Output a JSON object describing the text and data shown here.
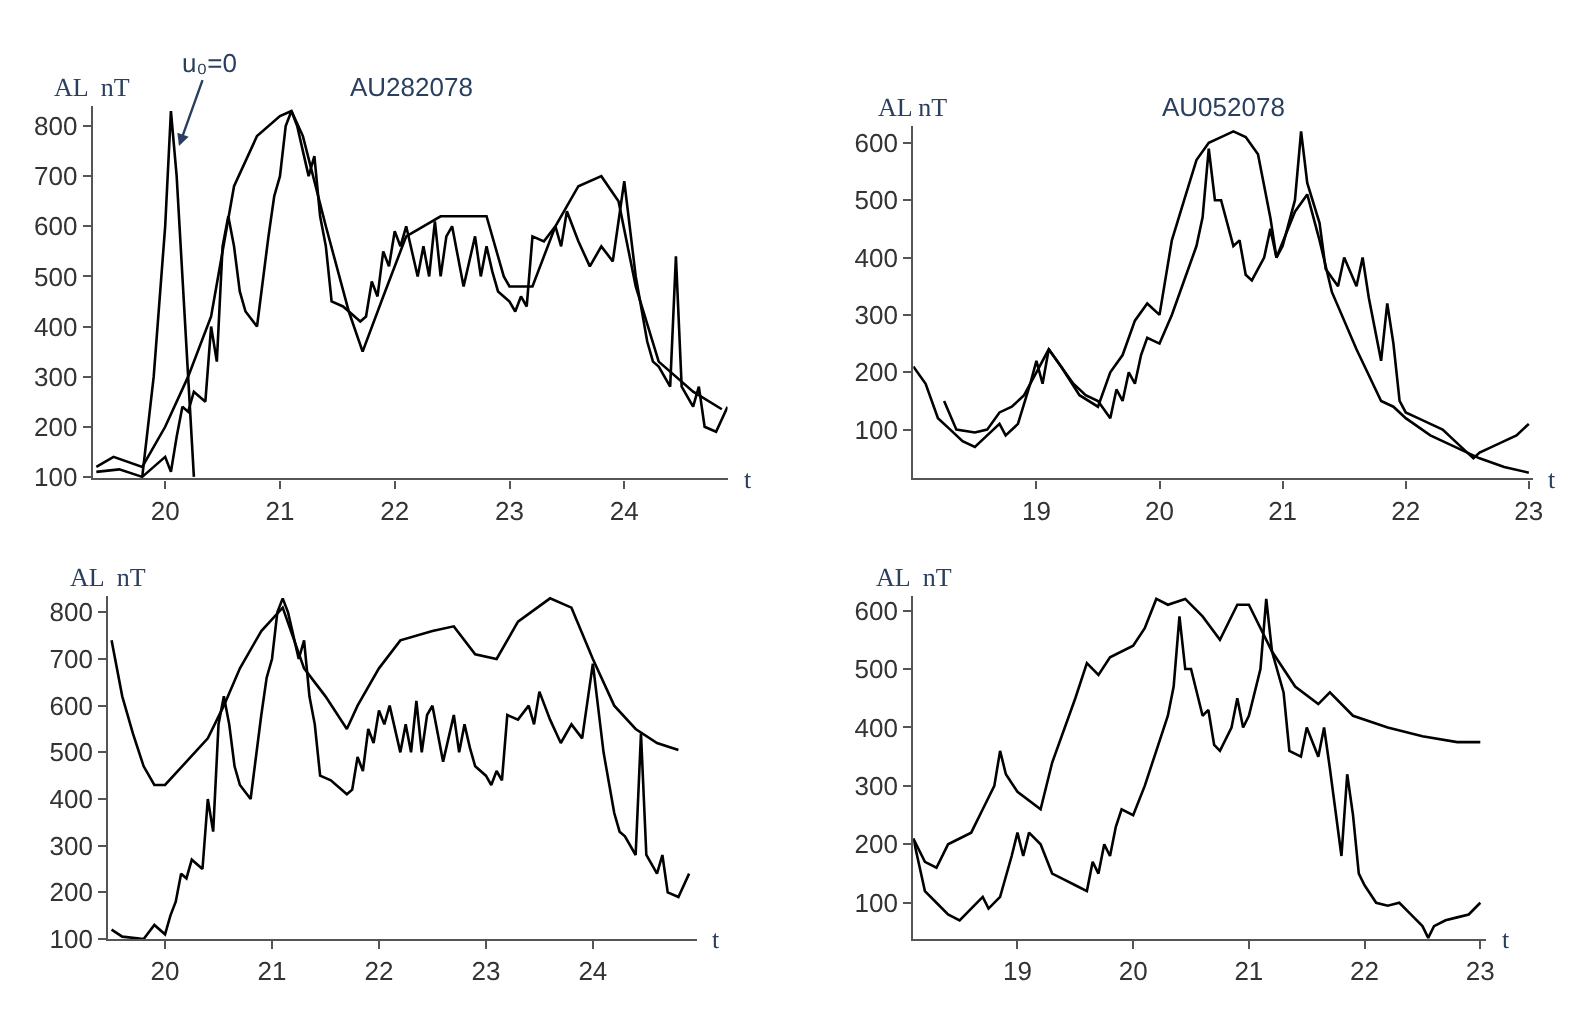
{
  "chart_data": [
    {
      "type": "line",
      "title": "AU282078",
      "xlabel": "t",
      "ylabel": "AL  nT",
      "xlim": [
        19.37,
        24.9
      ],
      "xticks": [
        20,
        21,
        22,
        23,
        24
      ],
      "ylim": [
        97,
        840
      ],
      "yticks": [
        100,
        200,
        300,
        400,
        500,
        600,
        700,
        800
      ],
      "marker": "none",
      "line_style": "solid",
      "annotations": [
        {
          "text": "u₀=0",
          "x": 20.12,
          "y": 760
        }
      ],
      "series": [
        {
          "color": "#000000",
          "x": [
            19.4,
            19.6,
            19.8,
            19.9,
            20.0,
            20.05,
            20.1,
            20.15,
            20.2,
            20.25,
            20.35,
            20.4,
            20.45,
            20.5,
            20.55,
            20.6,
            20.65,
            20.7,
            20.8,
            20.9,
            20.95,
            21.0,
            21.05,
            21.1,
            21.15,
            21.2,
            21.25,
            21.3,
            21.35,
            21.4,
            21.45,
            21.55,
            21.7,
            21.75,
            21.8,
            21.85,
            21.9,
            21.95,
            22.0,
            22.05,
            22.1,
            22.2,
            22.25,
            22.3,
            22.35,
            22.4,
            22.45,
            22.5,
            22.55,
            22.6,
            22.7,
            22.75,
            22.8,
            22.85,
            22.9,
            23.0,
            23.05,
            23.1,
            23.15,
            23.2,
            23.3,
            23.4,
            23.45,
            23.5,
            23.6,
            23.7,
            23.8,
            23.9,
            24.0,
            24.1,
            24.2,
            24.25,
            24.3,
            24.4,
            24.45,
            24.5,
            24.6,
            24.65,
            24.7,
            24.8,
            24.9
          ],
          "values": [
            110,
            115,
            100,
            120,
            140,
            110,
            180,
            240,
            230,
            270,
            250,
            400,
            330,
            560,
            620,
            560,
            470,
            430,
            400,
            580,
            660,
            700,
            800,
            830,
            800,
            750,
            700,
            740,
            620,
            560,
            450,
            440,
            410,
            420,
            490,
            460,
            550,
            520,
            590,
            560,
            600,
            500,
            560,
            500,
            610,
            500,
            580,
            600,
            540,
            480,
            580,
            500,
            560,
            510,
            470,
            450,
            430,
            460,
            440,
            580,
            570,
            600,
            560,
            630,
            570,
            520,
            560,
            530,
            690,
            500,
            370,
            330,
            320,
            280,
            540,
            280,
            240,
            280,
            200,
            190,
            240
          ]
        },
        {
          "color": "#000000",
          "x": [
            19.4,
            19.55,
            19.8,
            20.0,
            20.2,
            20.4,
            20.6,
            20.8,
            21.0,
            21.1,
            21.2,
            21.4,
            21.6,
            21.72,
            21.9,
            22.1,
            22.4,
            22.8,
            22.95,
            23.0,
            23.2,
            23.4,
            23.6,
            23.8,
            23.95,
            24.1,
            24.3,
            24.6,
            24.85
          ],
          "values": [
            120,
            140,
            120,
            200,
            300,
            420,
            680,
            780,
            820,
            830,
            780,
            600,
            430,
            350,
            460,
            580,
            620,
            620,
            500,
            480,
            480,
            600,
            680,
            700,
            650,
            480,
            330,
            270,
            235
          ]
        },
        {
          "color": "#000000",
          "x": [
            19.8,
            19.9,
            20.0,
            20.05,
            20.1,
            20.2,
            20.25
          ],
          "values": [
            100,
            300,
            600,
            830,
            700,
            300,
            100
          ]
        }
      ]
    },
    {
      "type": "line",
      "title": "AU052078",
      "xlabel": "t",
      "ylabel": "AL nT",
      "xlim": [
        18.0,
        23.03
      ],
      "xticks": [
        19,
        20,
        21,
        22,
        23
      ],
      "ylim": [
        15,
        630
      ],
      "yticks": [
        100,
        200,
        300,
        400,
        500,
        600
      ],
      "marker": "none",
      "line_style": "solid",
      "series": [
        {
          "color": "#000000",
          "x": [
            18.0,
            18.1,
            18.2,
            18.3,
            18.4,
            18.5,
            18.6,
            18.7,
            18.75,
            18.85,
            18.95,
            19.0,
            19.05,
            19.1,
            19.2,
            19.3,
            19.4,
            19.5,
            19.6,
            19.65,
            19.7,
            19.75,
            19.8,
            19.85,
            19.9,
            20.0,
            20.1,
            20.2,
            20.3,
            20.35,
            20.4,
            20.45,
            20.5,
            20.6,
            20.65,
            20.7,
            20.75,
            20.85,
            20.9,
            20.95,
            21.0,
            21.1,
            21.15,
            21.2,
            21.3,
            21.35,
            21.45,
            21.5,
            21.6,
            21.65,
            21.7,
            21.8,
            21.85,
            21.9,
            21.95,
            22.0,
            22.1,
            22.2,
            22.3,
            22.4,
            22.5,
            22.55,
            22.6,
            22.7,
            22.8,
            22.9,
            23.0
          ],
          "values": [
            210,
            180,
            120,
            100,
            80,
            70,
            90,
            110,
            90,
            110,
            180,
            220,
            180,
            240,
            210,
            180,
            160,
            150,
            120,
            170,
            150,
            200,
            180,
            230,
            260,
            250,
            300,
            360,
            420,
            470,
            590,
            500,
            500,
            420,
            430,
            370,
            360,
            400,
            450,
            400,
            420,
            500,
            620,
            530,
            460,
            380,
            350,
            400,
            350,
            400,
            330,
            220,
            320,
            250,
            150,
            130,
            120,
            110,
            100,
            80,
            60,
            50,
            60,
            70,
            80,
            90,
            110
          ]
        },
        {
          "color": "#000000",
          "x": [
            18.25,
            18.35,
            18.5,
            18.6,
            18.7,
            18.8,
            18.9,
            19.0,
            19.1,
            19.2,
            19.35,
            19.5,
            19.6,
            19.7,
            19.8,
            19.9,
            20.0,
            20.1,
            20.2,
            20.3,
            20.4,
            20.5,
            20.6,
            20.7,
            20.8,
            20.9,
            20.95,
            21.1,
            21.2,
            21.3,
            21.4,
            21.6,
            21.8,
            21.9,
            22.0,
            22.2,
            22.4,
            22.6,
            22.8,
            23.0
          ],
          "values": [
            150,
            100,
            95,
            100,
            130,
            140,
            160,
            200,
            240,
            210,
            160,
            140,
            200,
            230,
            290,
            320,
            300,
            430,
            500,
            570,
            600,
            610,
            620,
            610,
            580,
            470,
            400,
            480,
            510,
            430,
            340,
            240,
            150,
            140,
            120,
            90,
            70,
            50,
            35,
            25
          ]
        }
      ]
    },
    {
      "type": "line",
      "xlabel": "t",
      "ylabel": "AL  nT",
      "xlim": [
        19.47,
        24.97
      ],
      "xticks": [
        20,
        21,
        22,
        23,
        24
      ],
      "ylim": [
        100,
        835
      ],
      "yticks": [
        100,
        200,
        300,
        400,
        500,
        600,
        700,
        800
      ],
      "marker": "none",
      "line_style": "solid",
      "series": [
        {
          "color": "#000000",
          "x": [
            19.5,
            19.6,
            19.8,
            19.9,
            20.0,
            20.05,
            20.1,
            20.15,
            20.2,
            20.25,
            20.35,
            20.4,
            20.45,
            20.5,
            20.55,
            20.6,
            20.65,
            20.7,
            20.8,
            20.9,
            20.95,
            21.0,
            21.05,
            21.1,
            21.15,
            21.2,
            21.25,
            21.3,
            21.35,
            21.4,
            21.45,
            21.55,
            21.7,
            21.75,
            21.8,
            21.85,
            21.9,
            21.95,
            22.0,
            22.05,
            22.1,
            22.2,
            22.25,
            22.3,
            22.35,
            22.4,
            22.45,
            22.5,
            22.55,
            22.6,
            22.7,
            22.75,
            22.8,
            22.85,
            22.9,
            23.0,
            23.05,
            23.1,
            23.15,
            23.2,
            23.3,
            23.4,
            23.45,
            23.5,
            23.6,
            23.7,
            23.8,
            23.9,
            24.0,
            24.1,
            24.2,
            24.25,
            24.3,
            24.4,
            24.45,
            24.5,
            24.6,
            24.65,
            24.7,
            24.8,
            24.9
          ],
          "values": [
            120,
            105,
            100,
            130,
            110,
            150,
            180,
            240,
            230,
            270,
            250,
            400,
            330,
            560,
            620,
            560,
            470,
            430,
            400,
            580,
            660,
            700,
            800,
            830,
            800,
            750,
            700,
            740,
            620,
            560,
            450,
            440,
            410,
            420,
            490,
            460,
            550,
            520,
            590,
            560,
            600,
            500,
            560,
            500,
            610,
            500,
            580,
            600,
            540,
            480,
            580,
            500,
            560,
            510,
            470,
            450,
            430,
            460,
            440,
            580,
            570,
            600,
            560,
            630,
            570,
            520,
            560,
            530,
            690,
            500,
            370,
            330,
            320,
            280,
            540,
            280,
            240,
            280,
            200,
            190,
            240
          ]
        },
        {
          "color": "#000000",
          "x": [
            19.5,
            19.6,
            19.7,
            19.8,
            19.9,
            20.0,
            20.2,
            20.4,
            20.55,
            20.7,
            20.9,
            21.1,
            21.3,
            21.5,
            21.7,
            21.8,
            22.0,
            22.2,
            22.5,
            22.7,
            22.9,
            23.1,
            23.3,
            23.6,
            23.8,
            24.0,
            24.2,
            24.4,
            24.6,
            24.8
          ],
          "values": [
            740,
            620,
            540,
            470,
            430,
            430,
            480,
            530,
            600,
            680,
            760,
            810,
            680,
            620,
            550,
            600,
            680,
            740,
            760,
            770,
            710,
            700,
            780,
            830,
            810,
            700,
            600,
            550,
            520,
            505
          ]
        }
      ]
    },
    {
      "type": "line",
      "xlabel": "t",
      "ylabel": "AL  nT",
      "xlim": [
        18.1,
        23.05
      ],
      "xticks": [
        19,
        20,
        21,
        22,
        23
      ],
      "ylim": [
        38,
        625
      ],
      "yticks": [
        100,
        200,
        300,
        400,
        500,
        600
      ],
      "marker": "none",
      "line_style": "solid",
      "series": [
        {
          "color": "#000000",
          "x": [
            18.1,
            18.2,
            18.3,
            18.4,
            18.5,
            18.6,
            18.7,
            18.75,
            18.85,
            18.95,
            19.0,
            19.05,
            19.1,
            19.2,
            19.3,
            19.4,
            19.5,
            19.6,
            19.65,
            19.7,
            19.75,
            19.8,
            19.85,
            19.9,
            20.0,
            20.1,
            20.2,
            20.3,
            20.35,
            20.4,
            20.45,
            20.5,
            20.6,
            20.65,
            20.7,
            20.75,
            20.85,
            20.9,
            20.95,
            21.0,
            21.1,
            21.15,
            21.2,
            21.3,
            21.35,
            21.45,
            21.5,
            21.6,
            21.65,
            21.7,
            21.8,
            21.85,
            21.9,
            21.95,
            22.0,
            22.1,
            22.2,
            22.3,
            22.4,
            22.5,
            22.55,
            22.6,
            22.7,
            22.8,
            22.9,
            23.0
          ],
          "values": [
            210,
            120,
            100,
            80,
            70,
            90,
            110,
            90,
            110,
            180,
            220,
            180,
            220,
            200,
            150,
            140,
            130,
            120,
            170,
            150,
            200,
            180,
            230,
            260,
            250,
            300,
            360,
            420,
            470,
            590,
            500,
            500,
            420,
            430,
            370,
            360,
            400,
            450,
            400,
            420,
            500,
            620,
            530,
            460,
            360,
            350,
            400,
            350,
            400,
            330,
            180,
            320,
            250,
            150,
            130,
            100,
            95,
            100,
            80,
            60,
            40,
            60,
            70,
            75,
            80,
            100
          ]
        },
        {
          "color": "#000000",
          "x": [
            18.1,
            18.2,
            18.3,
            18.4,
            18.5,
            18.6,
            18.7,
            18.8,
            18.85,
            18.9,
            19.0,
            19.2,
            19.3,
            19.5,
            19.6,
            19.7,
            19.8,
            20.0,
            20.1,
            20.2,
            20.3,
            20.45,
            20.6,
            20.75,
            20.9,
            21.0,
            21.2,
            21.4,
            21.6,
            21.7,
            21.9,
            22.2,
            22.5,
            22.8,
            23.0
          ],
          "values": [
            210,
            170,
            160,
            200,
            210,
            220,
            260,
            300,
            360,
            320,
            290,
            260,
            340,
            450,
            510,
            490,
            520,
            540,
            570,
            620,
            610,
            620,
            590,
            550,
            610,
            610,
            530,
            470,
            440,
            460,
            420,
            400,
            385,
            375,
            375
          ]
        }
      ]
    }
  ]
}
